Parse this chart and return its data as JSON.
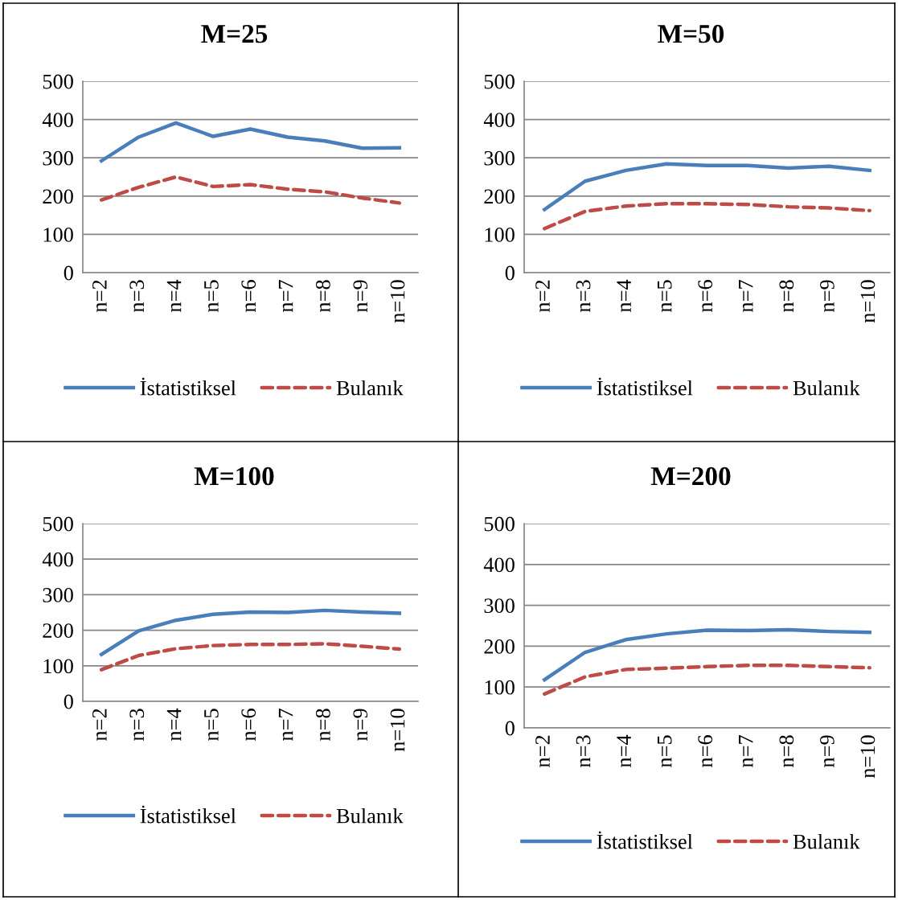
{
  "chart_data": [
    {
      "type": "line",
      "title": "M=25",
      "categories": [
        "n=2",
        "n=3",
        "n=4",
        "n=5",
        "n=6",
        "n=7",
        "n=8",
        "n=9",
        "n=10"
      ],
      "ylim": [
        0,
        500
      ],
      "yticks": [
        0,
        100,
        200,
        300,
        400,
        500
      ],
      "grid": "y",
      "legend": "bottom",
      "series": [
        {
          "name": "İstatistiksel",
          "color": "#4a7ebb",
          "line_style": "solid",
          "values": [
            292,
            354,
            391,
            356,
            375,
            354,
            344,
            325,
            326
          ]
        },
        {
          "name": "Bulanık",
          "color": "#be4b48",
          "line_style": "dashed",
          "values": [
            190,
            223,
            250,
            225,
            230,
            218,
            211,
            195,
            182
          ]
        }
      ]
    },
    {
      "type": "line",
      "title": "M=50",
      "categories": [
        "n=2",
        "n=3",
        "n=4",
        "n=5",
        "n=6",
        "n=7",
        "n=8",
        "n=9",
        "n=10"
      ],
      "ylim": [
        0,
        500
      ],
      "yticks": [
        0,
        100,
        200,
        300,
        400,
        500
      ],
      "grid": "y",
      "legend": "bottom",
      "series": [
        {
          "name": "İstatistiksel",
          "color": "#4a7ebb",
          "line_style": "solid",
          "values": [
            165,
            239,
            267,
            284,
            280,
            280,
            273,
            278,
            267
          ]
        },
        {
          "name": "Bulanık",
          "color": "#be4b48",
          "line_style": "dashed",
          "values": [
            115,
            160,
            174,
            180,
            180,
            178,
            172,
            169,
            162
          ]
        }
      ]
    },
    {
      "type": "line",
      "title": "M=100",
      "categories": [
        "n=2",
        "n=3",
        "n=4",
        "n=5",
        "n=6",
        "n=7",
        "n=8",
        "n=9",
        "n=10"
      ],
      "ylim": [
        0,
        500
      ],
      "yticks": [
        0,
        100,
        200,
        300,
        400,
        500
      ],
      "grid": "y",
      "legend": "bottom",
      "series": [
        {
          "name": "İstatistiksel",
          "color": "#4a7ebb",
          "line_style": "solid",
          "values": [
            132,
            198,
            228,
            245,
            251,
            250,
            256,
            251,
            248
          ]
        },
        {
          "name": "Bulanık",
          "color": "#be4b48",
          "line_style": "dashed",
          "values": [
            89,
            129,
            148,
            157,
            160,
            160,
            162,
            155,
            147
          ]
        }
      ]
    },
    {
      "type": "line",
      "title": "M=200",
      "categories": [
        "n=2",
        "n=3",
        "n=4",
        "n=5",
        "n=6",
        "n=7",
        "n=8",
        "n=9",
        "n=10"
      ],
      "ylim": [
        0,
        500
      ],
      "yticks": [
        0,
        100,
        200,
        300,
        400,
        500
      ],
      "grid": "y",
      "legend": "bottom",
      "series": [
        {
          "name": "İstatistiksel",
          "color": "#4a7ebb",
          "line_style": "solid",
          "values": [
            118,
            185,
            216,
            230,
            239,
            238,
            240,
            236,
            234
          ]
        },
        {
          "name": "Bulanık",
          "color": "#be4b48",
          "line_style": "dashed",
          "values": [
            83,
            125,
            143,
            146,
            150,
            153,
            153,
            150,
            147
          ]
        }
      ]
    }
  ]
}
